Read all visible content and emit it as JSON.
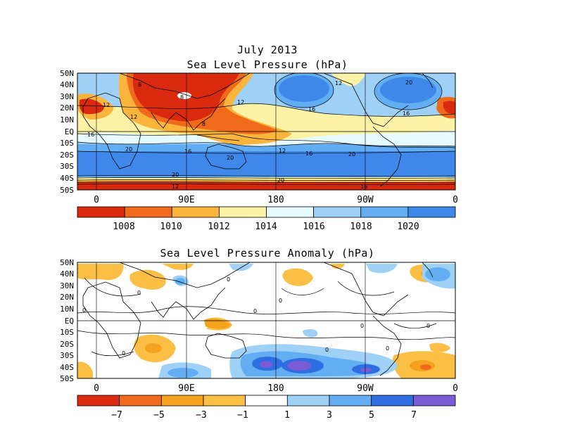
{
  "top": {
    "title_line1": "July 2013",
    "title_line2": "Sea Level Pressure (hPa)",
    "lat_labels": [
      "50N",
      "40N",
      "30N",
      "20N",
      "10N",
      "EQ",
      "10S",
      "20S",
      "30S",
      "40S",
      "50S"
    ],
    "lon_labels": [
      "0",
      "90E",
      "180",
      "90W",
      "0"
    ],
    "colorbar_labels": [
      "1008",
      "1010",
      "1012",
      "1014",
      "1016",
      "1018",
      "1020"
    ],
    "colorbar_colors": [
      "#d92a0f",
      "#f06a1c",
      "#fbb43c",
      "#fdf2a6",
      "#e6fbff",
      "#9fd1f7",
      "#63aef3",
      "#3f88ea"
    ],
    "contour_labels": [
      "8",
      "8",
      "8",
      "12",
      "12",
      "12",
      "12",
      "12",
      "12",
      "16",
      "16",
      "16",
      "16",
      "16",
      "16",
      "20",
      "20",
      "20",
      "20",
      "20",
      "20"
    ]
  },
  "bottom": {
    "title": "Sea Level Pressure Anomaly (hPa)",
    "lat_labels": [
      "50N",
      "40N",
      "30N",
      "20N",
      "10N",
      "EQ",
      "10S",
      "20S",
      "30S",
      "40S",
      "50S"
    ],
    "lon_labels": [
      "0",
      "90E",
      "180",
      "90W",
      "0"
    ],
    "colorbar_labels": [
      "−7",
      "−5",
      "−3",
      "−1",
      "1",
      "3",
      "5",
      "7"
    ],
    "colorbar_colors": [
      "#d92a0f",
      "#f06a1c",
      "#f5a21e",
      "#fbbf45",
      "#ffffff",
      "#9fd1f7",
      "#63aef3",
      "#2f6ee0",
      "#7b5bd6"
    ],
    "contour_labels": [
      "0",
      "0",
      "0",
      "0",
      "0",
      "0",
      "0",
      "0",
      "0",
      "0"
    ]
  }
}
